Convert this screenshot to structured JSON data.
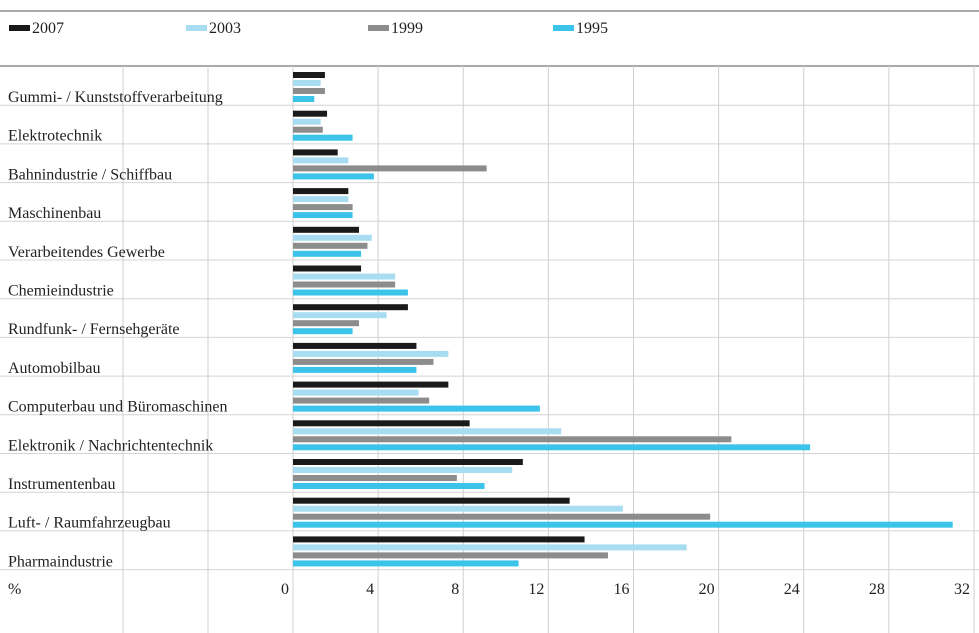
{
  "chart_data": {
    "type": "bar",
    "orientation": "horizontal",
    "categories": [
      "Gummi- / Kunststoffverarbeitung",
      "Elektrotechnik",
      "Bahnindustrie / Schiffbau",
      "Maschinenbau",
      "Verarbeitendes Gewerbe",
      "Chemieindustrie",
      "Rundfunk- / Fernsehgeräte",
      "Automobilbau",
      "Computerbau und Büromaschinen",
      "Elektronik / Nachrichtentechnik",
      "Instrumentenbau",
      "Luft- / Raumfahrzeugbau",
      "Pharmaindustrie"
    ],
    "series": [
      {
        "name": "2007",
        "color": "#1a1a1a",
        "values": [
          1.5,
          1.6,
          2.1,
          2.6,
          3.1,
          3.2,
          5.4,
          5.8,
          7.3,
          8.3,
          10.8,
          13.0,
          13.7
        ]
      },
      {
        "name": "2003",
        "color": "#a8dcf0",
        "values": [
          1.3,
          1.3,
          2.6,
          2.6,
          3.7,
          4.8,
          4.4,
          7.3,
          5.9,
          12.6,
          10.3,
          15.5,
          18.5
        ]
      },
      {
        "name": "1999",
        "color": "#8c8c8c",
        "values": [
          1.5,
          1.4,
          9.1,
          2.8,
          3.5,
          4.8,
          3.1,
          6.6,
          6.4,
          20.6,
          7.7,
          19.6,
          14.8
        ]
      },
      {
        "name": "1995",
        "color": "#3cc3ea",
        "values": [
          1.0,
          2.8,
          3.8,
          2.8,
          3.2,
          5.4,
          2.8,
          5.8,
          11.6,
          24.3,
          9.0,
          31.0,
          10.6
        ]
      }
    ],
    "x_unit_label": "%",
    "xticks": [
      "0",
      "4",
      "8",
      "12",
      "16",
      "20",
      "24",
      "28",
      "32"
    ],
    "xlim": [
      0,
      32
    ],
    "legend_position": "top",
    "grid": true
  }
}
